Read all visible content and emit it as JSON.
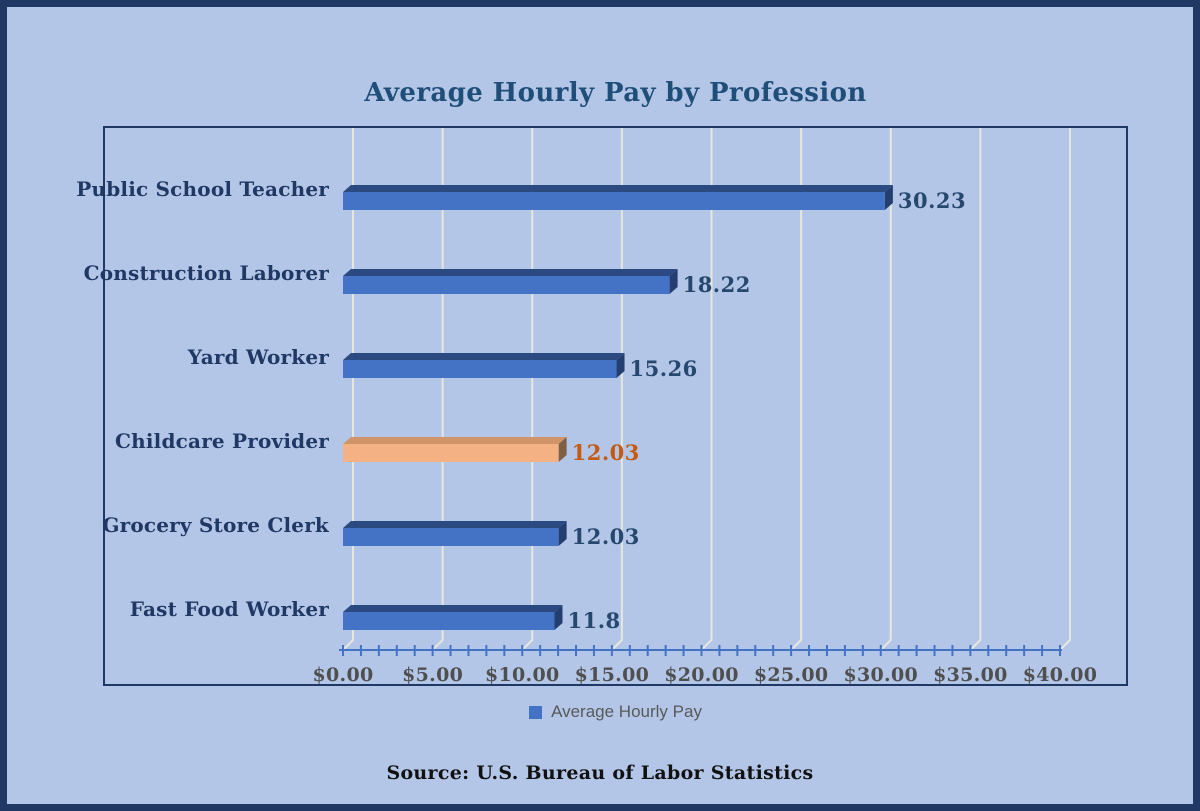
{
  "window": {
    "background": "#b4c6e7",
    "border_color": "#1f3864"
  },
  "title": {
    "text": "Average Hourly Pay by Profession",
    "color": "#1f4e79"
  },
  "chart_data": {
    "type": "bar",
    "orientation": "horizontal",
    "style": "3d",
    "title": "Average Hourly Pay by Profession",
    "categories": [
      "Public School Teacher",
      "Construction Laborer",
      "Yard Worker",
      "Childcare Provider",
      "Grocery Store Clerk",
      "Fast Food Worker"
    ],
    "values": [
      30.23,
      18.22,
      15.26,
      12.03,
      12.03,
      11.8
    ],
    "value_labels": [
      "30.23",
      "18.22",
      "15.26",
      "12.03",
      "12.03",
      "11.8"
    ],
    "xlabel": "",
    "ylabel": "",
    "xlim": [
      0,
      40
    ],
    "x_tick_step": 5,
    "x_minor_tick_step": 1,
    "x_tick_labels": [
      "$0.00",
      "$5.00",
      "$10.00",
      "$15.00",
      "$20.00",
      "$25.00",
      "$30.00",
      "$35.00",
      "$40.00"
    ],
    "grid": true,
    "legend_position": "bottom",
    "colors": {
      "default_bar": {
        "face": "#4472c4",
        "top": "#2c4a82",
        "end": "#243e6f",
        "value_label": "#26486f"
      },
      "highlight_bar": {
        "face": "#f4b183",
        "top": "#cf9468",
        "end": "#7d5f46",
        "value_label": "#c55a11"
      },
      "highlight_index": 3,
      "gridline": "#e7e7de",
      "axis_line": "#4472c4",
      "axis_label": "#4f4f4f",
      "category_label": "#1f3864",
      "plot_border": "#1f3864"
    }
  },
  "legend": {
    "label": "Average Hourly Pay",
    "marker_color": "#4472c4"
  },
  "footer": {
    "source_text": "Source: U.S. Bureau of Labor Statistics",
    "color": "#111111"
  }
}
